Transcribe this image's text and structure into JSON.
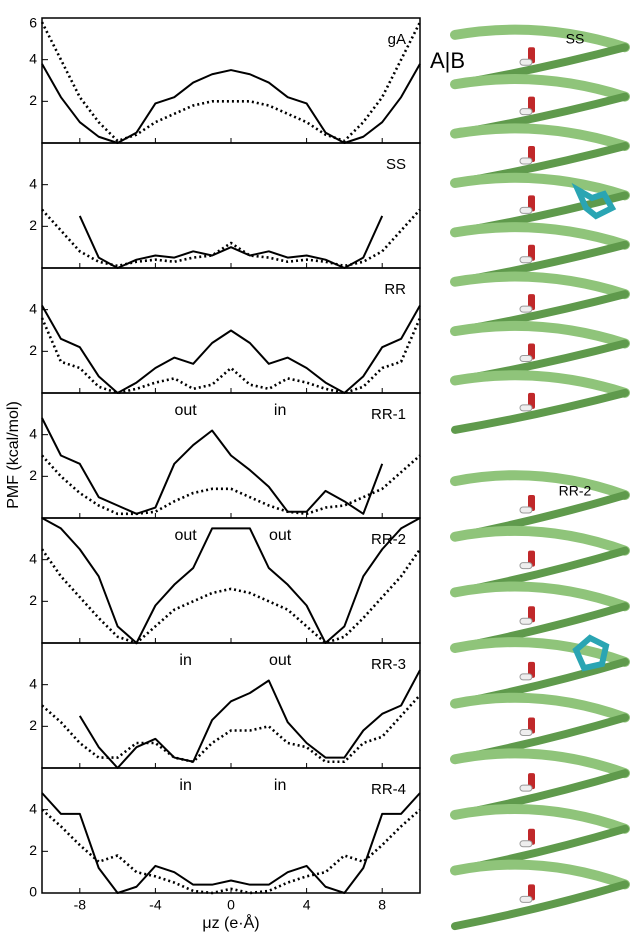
{
  "chart_data": {
    "type": "line",
    "ylabel": "PMF (kcal/mol)",
    "xlabel": "μz (e·Å)",
    "x": [
      -10,
      -9,
      -8,
      -7,
      -6,
      -5,
      -4,
      -3,
      -2,
      -1,
      0,
      1,
      2,
      3,
      4,
      5,
      6,
      7,
      8,
      9,
      10
    ],
    "xlim": [
      -10,
      10
    ],
    "xticks": [
      -8,
      -4,
      0,
      4,
      8
    ],
    "panels": [
      {
        "label": "gA",
        "ylim": [
          0,
          6
        ],
        "yticks": [
          2,
          4,
          6
        ],
        "annotations": [],
        "series": [
          {
            "color": "#000",
            "dash": false,
            "values": [
              3.8,
              2.2,
              1,
              0.3,
              0,
              0.5,
              1.9,
              2.2,
              2.9,
              3.3,
              3.5,
              3.3,
              2.9,
              2.2,
              1.9,
              0.5,
              0,
              0.3,
              1,
              2.2,
              3.8
            ]
          },
          {
            "color": "#000",
            "dash": true,
            "values": [
              5.8,
              4,
              2.2,
              1,
              0.1,
              0.4,
              1,
              1.4,
              1.8,
              2,
              2,
              2,
              1.8,
              1.4,
              1,
              0.4,
              0.1,
              1,
              2.2,
              4,
              5.8
            ]
          }
        ]
      },
      {
        "label": "SS",
        "ylim": [
          0,
          6
        ],
        "yticks": [
          2,
          4
        ],
        "annotations": [],
        "series": [
          {
            "color": "#000",
            "dash": false,
            "values": [
              null,
              null,
              2.5,
              0.5,
              0,
              0.4,
              0.6,
              0.5,
              0.8,
              0.6,
              1,
              0.6,
              0.8,
              0.5,
              0.6,
              0.4,
              0,
              0.5,
              2.5,
              null,
              null
            ]
          },
          {
            "color": "#000",
            "dash": true,
            "values": [
              2.8,
              1.8,
              0.8,
              0.3,
              0.1,
              0.3,
              0.4,
              0.3,
              0.5,
              0.6,
              1.2,
              0.6,
              0.5,
              0.3,
              0.4,
              0.3,
              0.1,
              0.3,
              0.8,
              1.8,
              2.8
            ]
          }
        ]
      },
      {
        "label": "RR",
        "ylim": [
          0,
          6
        ],
        "yticks": [
          2,
          4
        ],
        "annotations": [],
        "series": [
          {
            "color": "#000",
            "dash": false,
            "values": [
              4.2,
              2.6,
              2.2,
              0.8,
              0,
              0.5,
              1.2,
              1.7,
              1.4,
              2.4,
              3,
              2.4,
              1.4,
              1.7,
              1.2,
              0.5,
              0,
              0.8,
              2.2,
              2.6,
              4.2
            ]
          },
          {
            "color": "#000",
            "dash": true,
            "values": [
              3.6,
              1.5,
              1.2,
              0.3,
              0,
              0.2,
              0.5,
              0.7,
              0.2,
              0.4,
              1.2,
              0.4,
              0.2,
              0.7,
              0.5,
              0.2,
              0,
              0.3,
              1.2,
              1.5,
              3.6
            ]
          }
        ]
      },
      {
        "label": "RR-1",
        "ylim": [
          0,
          6
        ],
        "yticks": [
          2,
          4
        ],
        "annotations": [
          "out",
          "in"
        ],
        "series": [
          {
            "color": "#000",
            "dash": false,
            "values": [
              4.8,
              3,
              2.6,
              1,
              0.6,
              0.2,
              0.5,
              2.6,
              3.5,
              4.2,
              3,
              2.3,
              1.5,
              0.3,
              0.3,
              1.3,
              0.8,
              0.2,
              2.6,
              null,
              null
            ]
          },
          {
            "color": "#000",
            "dash": true,
            "values": [
              3,
              2,
              1.2,
              0.6,
              0.2,
              0.2,
              0.3,
              0.8,
              1.2,
              1.4,
              1.4,
              1,
              0.6,
              0.3,
              0.2,
              0.5,
              0.6,
              1,
              1.4,
              2.2,
              3
            ]
          }
        ]
      },
      {
        "label": "RR-2",
        "ylim": [
          0,
          6
        ],
        "yticks": [
          2,
          4
        ],
        "annotations": [
          "out",
          "out"
        ],
        "series": [
          {
            "color": "#000",
            "dash": false,
            "values": [
              6,
              5.5,
              4.5,
              3.2,
              0.8,
              0,
              1.8,
              2.8,
              3.6,
              5.5,
              5.5,
              5.5,
              3.6,
              2.8,
              1.8,
              0,
              0.8,
              3.2,
              4.5,
              5.5,
              6
            ]
          },
          {
            "color": "#000",
            "dash": true,
            "values": [
              4.5,
              3.2,
              2.2,
              1.2,
              0.3,
              0,
              0.8,
              1.6,
              2,
              2.4,
              2.6,
              2.4,
              2,
              1.6,
              0.8,
              0,
              0.3,
              1.2,
              2.2,
              3.2,
              4.5
            ]
          }
        ]
      },
      {
        "label": "RR-3",
        "ylim": [
          0,
          6
        ],
        "yticks": [
          2,
          4
        ],
        "annotations": [
          "in",
          "out"
        ],
        "series": [
          {
            "color": "#000",
            "dash": false,
            "values": [
              null,
              null,
              2.5,
              1,
              0,
              1,
              1.4,
              0.5,
              0.3,
              2.3,
              3.2,
              3.6,
              4.2,
              2.2,
              1.2,
              0.5,
              0.5,
              1.8,
              2.6,
              3,
              4.7
            ]
          },
          {
            "color": "#000",
            "dash": true,
            "values": [
              3,
              2.2,
              1.2,
              0.5,
              0.5,
              1.2,
              1.2,
              0.5,
              0.3,
              1.2,
              1.8,
              1.8,
              2,
              1.2,
              1,
              0.3,
              0.3,
              1.2,
              1.5,
              2.5,
              3.5
            ]
          }
        ]
      },
      {
        "label": "RR-4",
        "ylim": [
          0,
          6
        ],
        "yticks": [
          0,
          2,
          4
        ],
        "annotations": [
          "in",
          "in"
        ],
        "series": [
          {
            "color": "#000",
            "dash": false,
            "values": [
              4.8,
              3.8,
              3.8,
              1.2,
              0,
              0.3,
              1.3,
              1,
              0.4,
              0.4,
              0.6,
              0.4,
              0.4,
              1,
              1.3,
              0.3,
              0,
              1.2,
              3.8,
              3.8,
              4.8
            ]
          },
          {
            "color": "#000",
            "dash": true,
            "values": [
              4,
              3.2,
              2.3,
              1.5,
              1.8,
              1,
              0.8,
              0.5,
              0.1,
              0,
              0.2,
              0,
              0.1,
              0.5,
              0.8,
              1,
              1.8,
              1.5,
              2.3,
              3.2,
              4
            ]
          }
        ]
      }
    ]
  },
  "figure": {
    "tag": "A|B",
    "structures": [
      "SS",
      "RR-2"
    ]
  }
}
